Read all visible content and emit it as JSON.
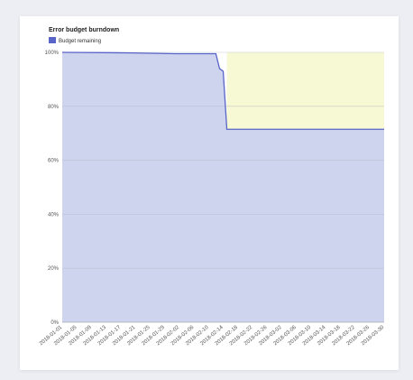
{
  "chart_data": {
    "type": "area",
    "title": "Error budget burndown",
    "legend": {
      "placement": "top-left",
      "entries": [
        "Budget remaining"
      ]
    },
    "xlabel": "",
    "ylabel": "",
    "ylim": [
      0,
      100
    ],
    "yticks": [
      "0%",
      "20%",
      "40%",
      "60%",
      "80%",
      "100%"
    ],
    "ytick_values": [
      0,
      20,
      40,
      60,
      80,
      100
    ],
    "grid": true,
    "x_range": [
      "2018-01-01",
      "2018-03-30"
    ],
    "x_labels": [
      "2018-01-01",
      "2018-01-05",
      "2018-01-09",
      "2018-01-13",
      "2018-01-17",
      "2018-01-21",
      "2018-01-25",
      "2018-01-29",
      "2018-02-02",
      "2018-02-06",
      "2018-02-10",
      "2018-02-14",
      "2018-02-18",
      "2018-02-22",
      "2018-02-26",
      "2018-03-02",
      "2018-03-06",
      "2018-03-10",
      "2018-03-14",
      "2018-03-18",
      "2018-03-22",
      "2018-03-26",
      "2018-03-30"
    ],
    "series": [
      {
        "name": "Budget remaining",
        "color": "#5864c8",
        "fill": "#cfd4ee",
        "x": [
          "2018-01-01",
          "2018-01-20",
          "2018-02-01",
          "2018-02-12",
          "2018-02-13",
          "2018-02-14",
          "2018-02-15",
          "2018-03-30"
        ],
        "values": [
          100,
          99.8,
          99.5,
          99.5,
          94,
          93,
          71.5,
          71.5
        ]
      }
    ],
    "background_region": {
      "from": "2018-02-15",
      "to": "2018-03-30",
      "color": "#f7f8d4"
    }
  }
}
